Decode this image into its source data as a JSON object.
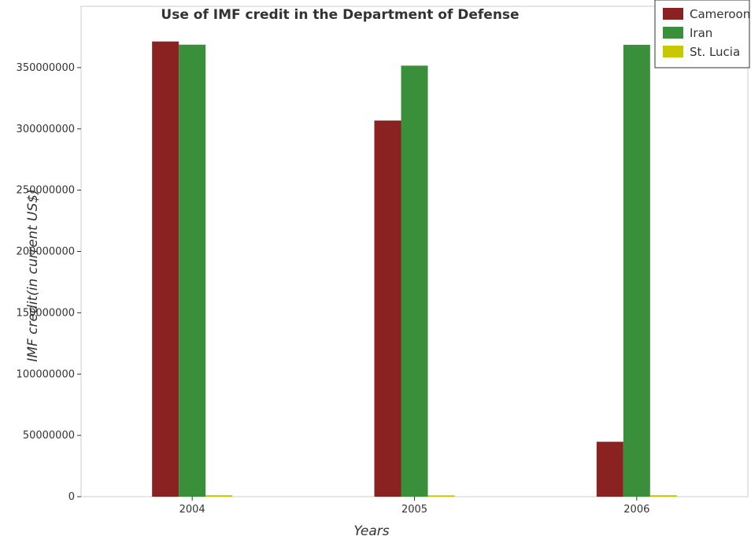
{
  "chart_data": {
    "type": "bar",
    "title": "Use of IMF credit in the Department of Defense",
    "xlabel": "Years",
    "ylabel": "IMF credit(in current US$)",
    "categories": [
      "2004",
      "2005",
      "2006"
    ],
    "series": [
      {
        "name": "Cameroon",
        "color": "#8b2222",
        "values": [
          371300000,
          306800000,
          44800000
        ]
      },
      {
        "name": "Iran",
        "color": "#3a8f3a",
        "values": [
          368700000,
          351600000,
          368600000
        ]
      },
      {
        "name": "St. Lucia",
        "color": "#c8c800",
        "values": [
          1200000,
          1100000,
          1200000
        ]
      }
    ],
    "ylim": [
      0,
      400000000
    ],
    "yticks": [
      0,
      50000000,
      100000000,
      150000000,
      200000000,
      250000000,
      300000000,
      350000000
    ],
    "ytick_labels": [
      "0",
      "50000000",
      "100000000",
      "150000000",
      "200000000",
      "250000000",
      "300000000",
      "350000000"
    ],
    "legend_position": "top-right",
    "grid": false
  }
}
